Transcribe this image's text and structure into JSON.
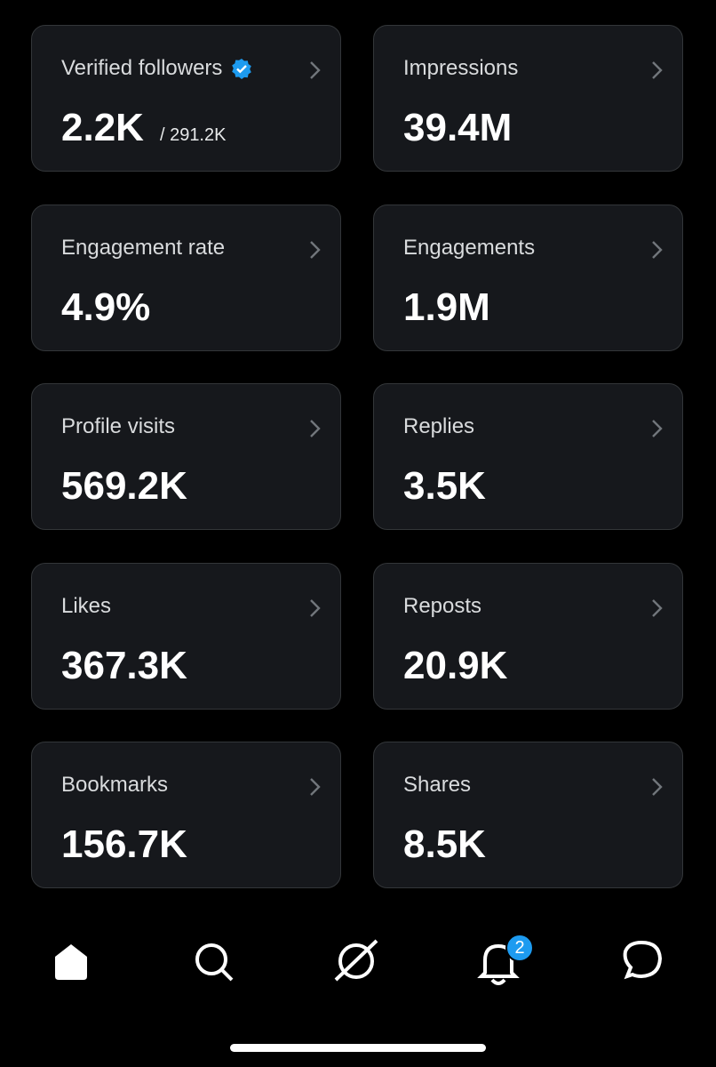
{
  "cards": [
    {
      "label": "Verified followers",
      "value": "2.2K",
      "sub": "/ 291.2K"
    },
    {
      "label": "Impressions",
      "value": "39.4M"
    },
    {
      "label": "Engagement rate",
      "value": "4.9%"
    },
    {
      "label": "Engagements",
      "value": "1.9M"
    },
    {
      "label": "Profile visits",
      "value": "569.2K"
    },
    {
      "label": "Replies",
      "value": "3.5K"
    },
    {
      "label": "Likes",
      "value": "367.3K"
    },
    {
      "label": "Reposts",
      "value": "20.9K"
    },
    {
      "label": "Bookmarks",
      "value": "156.7K"
    },
    {
      "label": "Shares",
      "value": "8.5K"
    }
  ],
  "nav": {
    "badge": "2"
  }
}
